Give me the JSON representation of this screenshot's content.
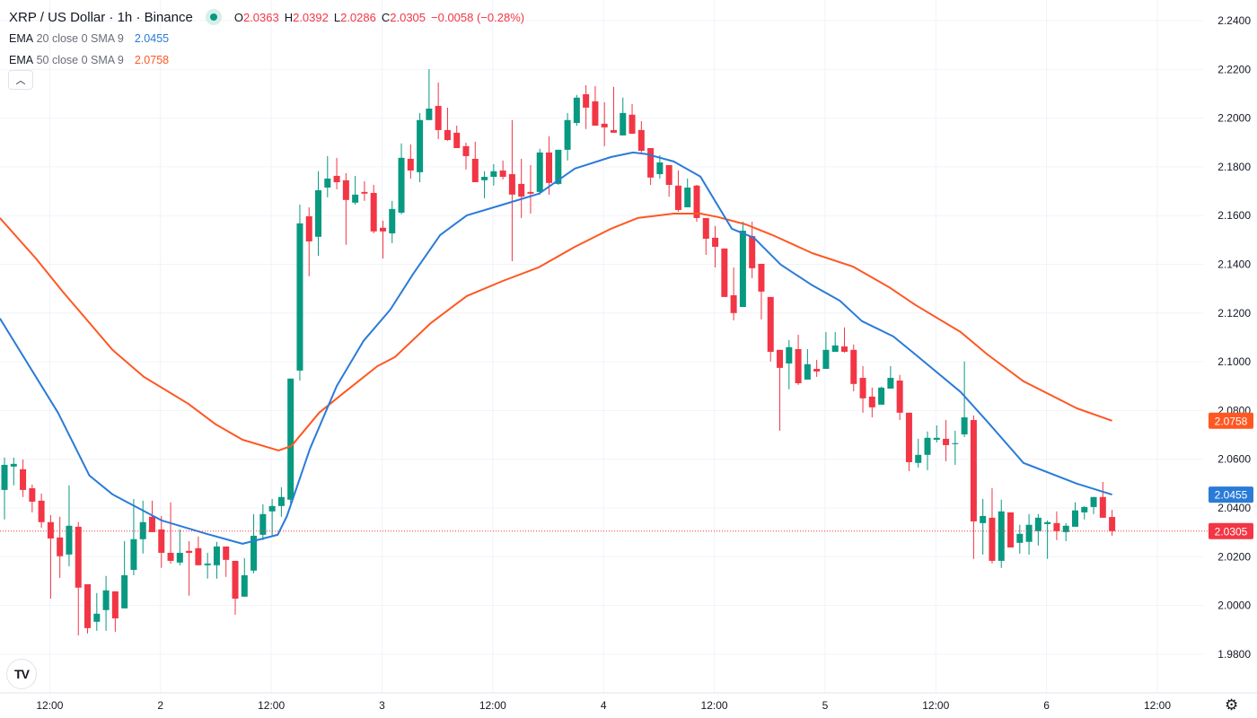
{
  "header": {
    "title": "XRP / US Dollar · 1h · Binance",
    "o_label": "O",
    "o": "2.0363",
    "h_label": "H",
    "h": "2.0392",
    "l_label": "L",
    "l": "2.0286",
    "c_label": "C",
    "c": "2.0305",
    "change": "−0.0058 (−0.28%)"
  },
  "indicators": [
    {
      "name": "EMA",
      "params": "20 close 0 SMA 9",
      "value": "2.0455",
      "color": "#2a7bd8"
    },
    {
      "name": "EMA",
      "params": "50 close 0 SMA 9",
      "value": "2.0758",
      "color": "#ff5722"
    }
  ],
  "icons": {
    "collapse": "chevron-up-icon",
    "logo": "tradingview-logo",
    "settings": "gear-icon"
  },
  "logo_text": "TV",
  "collapse_glyph": "︿",
  "gear_glyph": "⚙",
  "colors": {
    "up": "#089981",
    "down": "#f23645",
    "grid": "#f0f3fa",
    "current": "#f23645"
  },
  "chart_data": {
    "type": "candlestick",
    "title": "XRP / US Dollar · 1h · Binance",
    "ylim": [
      1.97,
      2.245
    ],
    "grid": true,
    "price_ticks": [
      "2.2400",
      "2.2200",
      "2.2000",
      "2.1800",
      "2.1600",
      "2.1400",
      "2.1200",
      "2.1000",
      "2.0800",
      "2.0600",
      "2.0400",
      "2.0200",
      "2.0000",
      "1.9800"
    ],
    "time_ticks": [
      {
        "label": "12:00",
        "index": 5
      },
      {
        "label": "2",
        "index": 17
      },
      {
        "label": "12:00",
        "index": 29
      },
      {
        "label": "3",
        "index": 41
      },
      {
        "label": "12:00",
        "index": 53
      },
      {
        "label": "4",
        "index": 65
      },
      {
        "label": "12:00",
        "index": 77
      },
      {
        "label": "5",
        "index": 89
      },
      {
        "label": "12:00",
        "index": 101
      },
      {
        "label": "6",
        "index": 113
      },
      {
        "label": "12:00",
        "index": 125
      }
    ],
    "current_price": "2.0305",
    "ohlc": [
      [
        2.0474,
        2.0607,
        2.0353,
        2.0577
      ],
      [
        2.057,
        2.0607,
        2.0493,
        2.0581
      ],
      [
        2.0559,
        2.0599,
        2.0445,
        2.0474
      ],
      [
        2.0481,
        2.0496,
        2.0382,
        2.0426
      ],
      [
        2.043,
        2.0459,
        2.0319,
        2.0342
      ],
      [
        2.0342,
        2.0371,
        2.0028,
        2.0275
      ],
      [
        2.0279,
        2.0364,
        2.0113,
        2.0202
      ],
      [
        2.0209,
        2.0493,
        2.0161,
        2.0327
      ],
      [
        2.0323,
        2.0342,
        1.9877,
        2.0073
      ],
      [
        2.0087,
        2.0087,
        1.9885,
        1.9907
      ],
      [
        1.9933,
        2.0051,
        1.9896,
        1.9966
      ],
      [
        1.9981,
        2.0121,
        1.9896,
        2.0062
      ],
      [
        2.0058,
        2.0058,
        1.9892,
        1.9947
      ],
      [
        1.9988,
        2.0264,
        1.9988,
        2.0124
      ],
      [
        2.0146,
        2.0437,
        2.0124,
        2.0272
      ],
      [
        2.0272,
        2.043,
        2.0213,
        2.0342
      ],
      [
        2.0364,
        2.043,
        2.0301,
        2.0301
      ],
      [
        2.0312,
        2.0367,
        2.0154,
        2.0216
      ],
      [
        2.0216,
        2.0423,
        2.0172,
        2.0183
      ],
      [
        2.0176,
        2.0312,
        2.0165,
        2.0216
      ],
      [
        2.0224,
        2.0264,
        2.004,
        2.0216
      ],
      [
        2.0235,
        2.0283,
        2.0165,
        2.0165
      ],
      [
        2.0165,
        2.0216,
        2.011,
        2.0172
      ],
      [
        2.0165,
        2.0261,
        2.011,
        2.0242
      ],
      [
        2.0242,
        2.0242,
        2.0117,
        2.0187
      ],
      [
        2.0183,
        2.0183,
        1.9962,
        2.0028
      ],
      [
        2.0036,
        2.0194,
        2.0036,
        2.0124
      ],
      [
        2.0143,
        2.0375,
        2.0132,
        2.0286
      ],
      [
        2.029,
        2.0415,
        2.0268,
        2.0375
      ],
      [
        2.0386,
        2.0437,
        2.0283,
        2.0408
      ],
      [
        2.0408,
        2.0485,
        2.0364,
        2.0445
      ],
      [
        2.0434,
        2.0931,
        2.0419,
        2.0931
      ],
      [
        2.0964,
        2.1645,
        2.0923,
        2.1568
      ],
      [
        2.1597,
        2.1634,
        2.1351,
        2.1494
      ],
      [
        2.1513,
        2.1782,
        2.1435,
        2.1704
      ],
      [
        2.1715,
        2.1844,
        2.1675,
        2.1752
      ],
      [
        2.1763,
        2.1837,
        2.1708,
        2.1737
      ],
      [
        2.1745,
        2.1774,
        2.148,
        2.1664
      ],
      [
        2.1653,
        2.1763,
        2.1645,
        2.1686
      ],
      [
        2.1697,
        2.1741,
        2.166,
        2.169
      ],
      [
        2.1693,
        2.1726,
        2.1527,
        2.1535
      ],
      [
        2.155,
        2.1579,
        2.1424,
        2.1535
      ],
      [
        2.1527,
        2.166,
        2.1487,
        2.1627
      ],
      [
        2.1612,
        2.1896,
        2.1605,
        2.1837
      ],
      [
        2.1833,
        2.1892,
        2.1752,
        2.1785
      ],
      [
        2.1778,
        2.2021,
        2.1737,
        2.1992
      ],
      [
        2.1992,
        2.2201,
        2.1992,
        2.2039
      ],
      [
        2.205,
        2.2146,
        2.1914,
        2.1951
      ],
      [
        2.1951,
        2.2043,
        2.1907,
        2.191
      ],
      [
        2.194,
        2.1969,
        2.1877,
        2.1877
      ],
      [
        2.1885,
        2.1899,
        2.1789,
        2.1844
      ],
      [
        2.1833,
        2.1903,
        2.1737,
        2.1737
      ],
      [
        2.1745,
        2.1782,
        2.1671,
        2.1759
      ],
      [
        2.1759,
        2.1811,
        2.1723,
        2.1782
      ],
      [
        2.1785,
        2.1826,
        2.1748,
        2.1759
      ],
      [
        2.177,
        2.1992,
        2.1413,
        2.1686
      ],
      [
        2.173,
        2.1833,
        2.159,
        2.1678
      ],
      [
        2.1697,
        2.1807,
        2.1608,
        2.169
      ],
      [
        2.1697,
        2.1874,
        2.1686,
        2.1859
      ],
      [
        2.1859,
        2.1925,
        2.1686,
        2.1734
      ],
      [
        2.173,
        2.187,
        2.1726,
        2.187
      ],
      [
        2.187,
        2.2021,
        2.1826,
        2.1992
      ],
      [
        2.198,
        2.2095,
        2.1969,
        2.2084
      ],
      [
        2.2098,
        2.2135,
        2.1955,
        2.2043
      ],
      [
        2.2069,
        2.2131,
        2.1969,
        2.1969
      ],
      [
        2.1977,
        2.2065,
        2.1885,
        2.1962
      ],
      [
        2.1951,
        2.2128,
        2.194,
        2.194
      ],
      [
        2.1929,
        2.2084,
        2.1929,
        2.2021
      ],
      [
        2.2014,
        2.2058,
        2.1936,
        2.1936
      ],
      [
        2.1951,
        2.1988,
        2.1859,
        2.1866
      ],
      [
        2.1877,
        2.1877,
        2.1726,
        2.1756
      ],
      [
        2.177,
        2.1848,
        2.1752,
        2.1818
      ],
      [
        2.1807,
        2.1807,
        2.1678,
        2.1726
      ],
      [
        2.1723,
        2.1785,
        2.1616,
        2.1623
      ],
      [
        2.1634,
        2.1752,
        2.1634,
        2.1715
      ],
      [
        2.1723,
        2.1726,
        2.1575,
        2.159
      ],
      [
        2.159,
        2.159,
        2.1439,
        2.1505
      ],
      [
        2.1509,
        2.1557,
        2.1387,
        2.1472
      ],
      [
        2.1465,
        2.1465,
        2.1266,
        2.1266
      ],
      [
        2.1273,
        2.1387,
        2.117,
        2.12
      ],
      [
        2.1225,
        2.1575,
        2.1225,
        2.1538
      ],
      [
        2.1516,
        2.1575,
        2.1343,
        2.1384
      ],
      [
        2.1402,
        2.1402,
        2.1174,
        2.1288
      ],
      [
        2.1266,
        2.1266,
        2.1001,
        2.1041
      ],
      [
        2.1049,
        2.1049,
        2.0717,
        2.0975
      ],
      [
        2.0993,
        2.1089,
        2.0887,
        2.106
      ],
      [
        2.1052,
        2.1111,
        2.0905,
        2.0912
      ],
      [
        2.0927,
        2.1052,
        2.0927,
        2.099
      ],
      [
        2.0971,
        2.1008,
        2.0938,
        2.096
      ],
      [
        2.0971,
        2.1122,
        2.0971,
        2.1049
      ],
      [
        2.1041,
        2.1122,
        2.1041,
        2.1067
      ],
      [
        2.1063,
        2.1141,
        2.1038,
        2.1041
      ],
      [
        2.1049,
        2.1071,
        2.0879,
        2.0909
      ],
      [
        2.0934,
        2.0982,
        2.0791,
        2.085
      ],
      [
        2.0857,
        2.0894,
        2.0772,
        2.0813
      ],
      [
        2.0824,
        2.0898,
        2.0824,
        2.0894
      ],
      [
        2.089,
        2.0982,
        2.089,
        2.0934
      ],
      [
        2.0923,
        2.0946,
        2.0761,
        2.0791
      ],
      [
        2.0791,
        2.0791,
        2.0551,
        2.0588
      ],
      [
        2.0585,
        2.0684,
        2.0566,
        2.0618
      ],
      [
        2.0618,
        2.0714,
        2.0555,
        2.0688
      ],
      [
        2.068,
        2.0739,
        2.0669,
        2.0688
      ],
      [
        2.0684,
        2.0761,
        2.0592,
        2.0658
      ],
      [
        2.0662,
        2.0717,
        2.0577,
        2.0666
      ],
      [
        2.0702,
        2.1001,
        2.0691,
        2.0772
      ],
      [
        2.0761,
        2.078,
        2.0191,
        2.0345
      ],
      [
        2.0338,
        2.0437,
        2.0209,
        2.0367
      ],
      [
        2.036,
        2.0481,
        2.0172,
        2.0183
      ],
      [
        2.0183,
        2.0434,
        2.0154,
        2.0386
      ],
      [
        2.0382,
        2.0382,
        2.0238,
        2.0238
      ],
      [
        2.0257,
        2.0331,
        2.0213,
        2.0294
      ],
      [
        2.0261,
        2.0375,
        2.0209,
        2.0331
      ],
      [
        2.0305,
        2.0375,
        2.0246,
        2.036
      ],
      [
        2.0334,
        2.0349,
        2.0191,
        2.0342
      ],
      [
        2.0338,
        2.0386,
        2.0268,
        2.0305
      ],
      [
        2.0301,
        2.0338,
        2.0264,
        2.0327
      ],
      [
        2.0323,
        2.0423,
        2.0323,
        2.039
      ],
      [
        2.0382,
        2.0408,
        2.0353,
        2.0404
      ],
      [
        2.0404,
        2.0445,
        2.0375,
        2.0445
      ],
      [
        2.0445,
        2.0507,
        2.036,
        2.036
      ],
      [
        2.0363,
        2.0392,
        2.0286,
        2.0305
      ]
    ],
    "ema20": [
      [
        -0.5,
        2.1178
      ],
      [
        5.8,
        2.0791
      ],
      [
        9.2,
        2.0533
      ],
      [
        11.7,
        2.0456
      ],
      [
        17,
        2.0349
      ],
      [
        21.9,
        2.0294
      ],
      [
        25.8,
        2.0253
      ],
      [
        29.6,
        2.029
      ],
      [
        30.6,
        2.0367
      ],
      [
        33.1,
        2.0644
      ],
      [
        36,
        2.0901
      ],
      [
        38.9,
        2.1086
      ],
      [
        41.8,
        2.1214
      ],
      [
        44.3,
        2.1362
      ],
      [
        47.2,
        2.152
      ],
      [
        50.1,
        2.1601
      ],
      [
        54,
        2.1645
      ],
      [
        57.9,
        2.169
      ],
      [
        61.8,
        2.1793
      ],
      [
        65.7,
        2.184
      ],
      [
        68.1,
        2.1859
      ],
      [
        69.6,
        2.1852
      ],
      [
        72.5,
        2.1822
      ],
      [
        75.4,
        2.176
      ],
      [
        78.8,
        2.1546
      ],
      [
        81.2,
        2.1509
      ],
      [
        84.1,
        2.1399
      ],
      [
        87.5,
        2.1314
      ],
      [
        90.5,
        2.1251
      ],
      [
        92.9,
        2.1167
      ],
      [
        96.3,
        2.1104
      ],
      [
        98.7,
        2.103
      ],
      [
        103.6,
        2.0876
      ],
      [
        106.5,
        2.0754
      ],
      [
        110.4,
        2.0585
      ],
      [
        116.2,
        2.05
      ],
      [
        120,
        2.0455
      ]
    ],
    "ema50": [
      [
        -0.5,
        2.159
      ],
      [
        3.4,
        2.1424
      ],
      [
        6.3,
        2.1288
      ],
      [
        11.7,
        2.1049
      ],
      [
        15.1,
        2.0938
      ],
      [
        19.9,
        2.0828
      ],
      [
        22.9,
        2.0743
      ],
      [
        25.8,
        2.068
      ],
      [
        29.7,
        2.0636
      ],
      [
        31.1,
        2.0655
      ],
      [
        34.1,
        2.0791
      ],
      [
        36.5,
        2.0865
      ],
      [
        40.4,
        2.0982
      ],
      [
        42.3,
        2.1019
      ],
      [
        46.2,
        2.1159
      ],
      [
        50.1,
        2.127
      ],
      [
        54,
        2.1332
      ],
      [
        57.9,
        2.1388
      ],
      [
        61.8,
        2.1472
      ],
      [
        65.7,
        2.1546
      ],
      [
        68.6,
        2.159
      ],
      [
        72.5,
        2.1608
      ],
      [
        75.4,
        2.1608
      ],
      [
        77.3,
        2.1594
      ],
      [
        80.3,
        2.1564
      ],
      [
        83.2,
        2.152
      ],
      [
        87.5,
        2.1446
      ],
      [
        91.9,
        2.1391
      ],
      [
        95.8,
        2.1307
      ],
      [
        98.7,
        2.1233
      ],
      [
        103.6,
        2.1122
      ],
      [
        106.5,
        2.103
      ],
      [
        110.4,
        2.092
      ],
      [
        116.2,
        2.0809
      ],
      [
        120,
        2.0758
      ]
    ]
  }
}
